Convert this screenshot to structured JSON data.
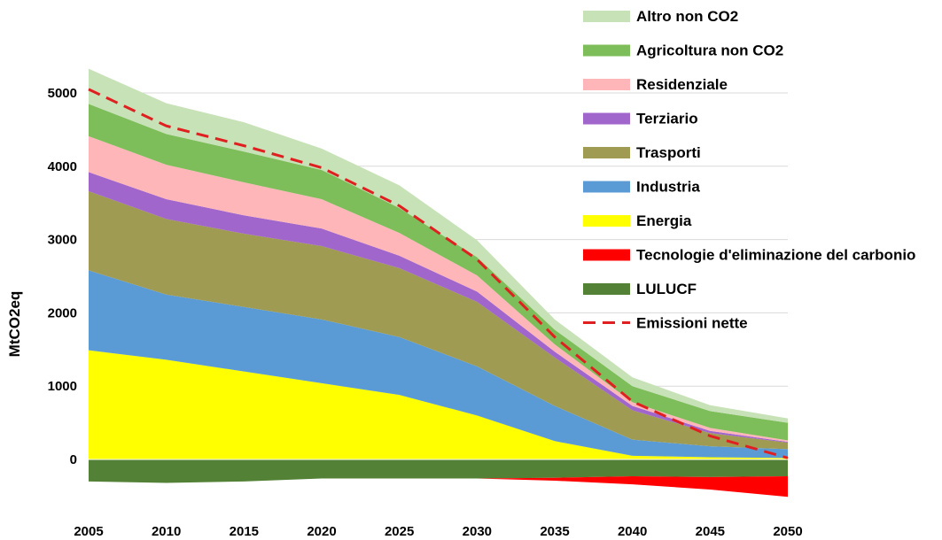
{
  "chart_data": {
    "type": "area",
    "stacked": true,
    "title": "",
    "xlabel": "",
    "ylabel": "MtCO2eq",
    "x": [
      2005,
      2010,
      2015,
      2020,
      2025,
      2030,
      2035,
      2040,
      2045,
      2050
    ],
    "ylim": [
      -550,
      5400
    ],
    "yticks": [
      0,
      1000,
      2000,
      3000,
      4000,
      5000
    ],
    "grid": "horizontal",
    "legend_position": "top-right",
    "series": [
      {
        "name": "Energia",
        "color": "#FFFF00",
        "values": [
          1490,
          1360,
          1200,
          1040,
          880,
          600,
          250,
          50,
          30,
          20
        ]
      },
      {
        "name": "Industria",
        "color": "#5B9BD5",
        "values": [
          1090,
          890,
          880,
          870,
          790,
          670,
          480,
          220,
          150,
          120
        ]
      },
      {
        "name": "Trasporti",
        "color": "#A09B52",
        "values": [
          1080,
          1030,
          1000,
          1000,
          940,
          880,
          660,
          400,
          180,
          90
        ]
      },
      {
        "name": "Terziario",
        "color": "#A066CC",
        "values": [
          260,
          270,
          250,
          240,
          170,
          140,
          80,
          60,
          30,
          10
        ]
      },
      {
        "name": "Residenziale",
        "color": "#FFB6B9",
        "values": [
          490,
          470,
          450,
          400,
          310,
          220,
          100,
          50,
          40,
          20
        ]
      },
      {
        "name": "Agricoltura non CO2",
        "color": "#7DBD5A",
        "values": [
          440,
          420,
          420,
          400,
          340,
          250,
          200,
          220,
          230,
          240
        ]
      },
      {
        "name": "Altro non CO2",
        "color": "#C6E2B6",
        "values": [
          480,
          420,
          400,
          290,
          310,
          230,
          140,
          120,
          80,
          60
        ]
      },
      {
        "name": "LULUCF",
        "color": "#538135",
        "values": [
          -300,
          -320,
          -300,
          -260,
          -260,
          -260,
          -250,
          -230,
          -240,
          -230
        ]
      },
      {
        "name": "Tecnologie d'eliminazione del carbonio",
        "color": "#FF0000",
        "values": [
          0,
          0,
          0,
          0,
          0,
          0,
          -40,
          -110,
          -170,
          -280
        ]
      }
    ],
    "net_emissions": {
      "name": "Emissioni nette",
      "color": "#E02020",
      "values": [
        5050,
        4550,
        4280,
        3980,
        3460,
        2730,
        1670,
        790,
        320,
        20
      ]
    }
  }
}
